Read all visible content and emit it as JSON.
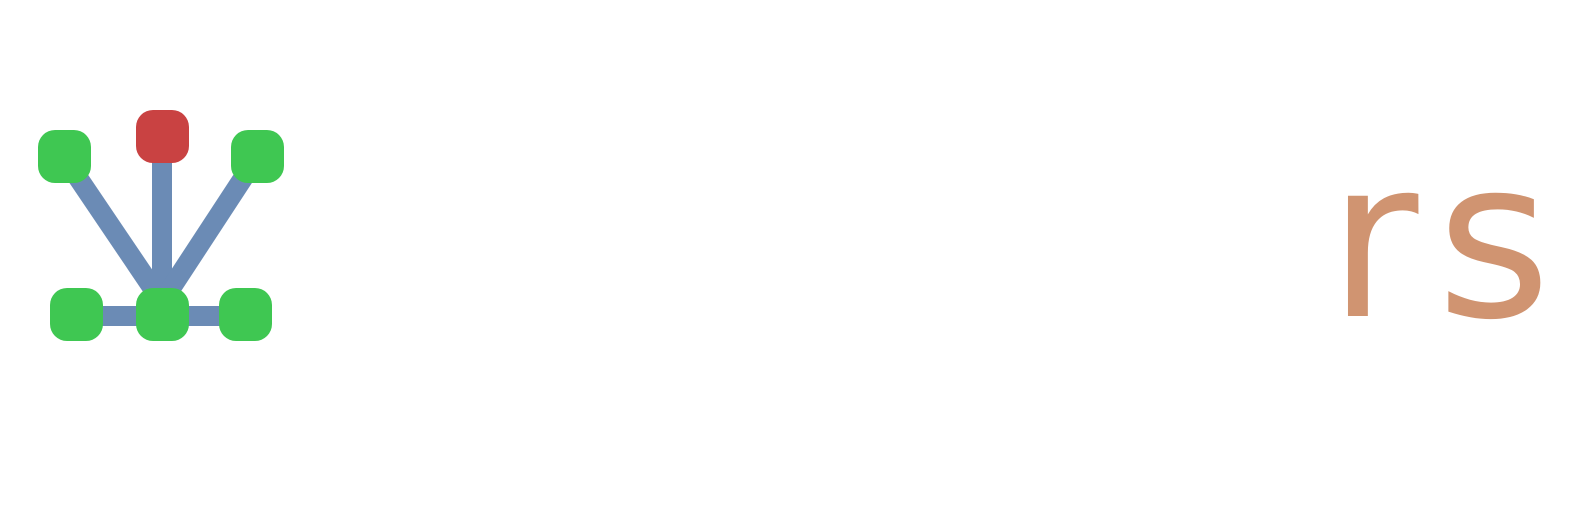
{
  "logo": {
    "wordmark": "rs",
    "icon": "network-graph-icon",
    "colors": {
      "edge": "#6b8bb5",
      "node": "#3fc752",
      "root_node": "#c94242",
      "wordmark": "#d09471",
      "background": "#ffffff"
    }
  }
}
